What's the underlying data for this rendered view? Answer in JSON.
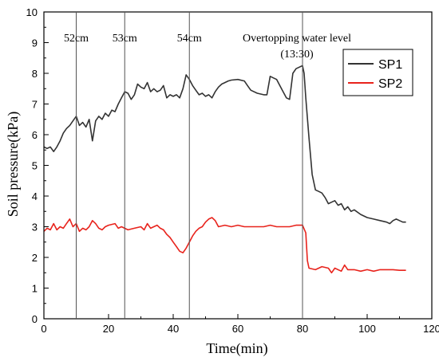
{
  "chart_data": {
    "type": "line",
    "title": "",
    "xlabel": "Time(min)",
    "ylabel": "Soil pressure(kPa)",
    "xlim": [
      0,
      120
    ],
    "ylim": [
      0,
      10
    ],
    "xticks": [
      0,
      20,
      40,
      60,
      80,
      100,
      120
    ],
    "yticks": [
      0,
      1,
      2,
      3,
      4,
      5,
      6,
      7,
      8,
      9,
      10
    ],
    "grid": false,
    "legend": "top-right",
    "markers": [
      {
        "x": 10,
        "label": "52cm"
      },
      {
        "x": 25,
        "label": "53cm"
      },
      {
        "x": 45,
        "label": "54cm"
      },
      {
        "x": 80,
        "label": "Overtopping water level",
        "label2": "(13:30)"
      }
    ],
    "series": [
      {
        "name": "SP1",
        "color": "#333333",
        "points": [
          [
            0,
            5.6
          ],
          [
            1,
            5.55
          ],
          [
            2,
            5.6
          ],
          [
            3,
            5.45
          ],
          [
            4,
            5.6
          ],
          [
            5,
            5.8
          ],
          [
            6,
            6.05
          ],
          [
            7,
            6.2
          ],
          [
            8,
            6.3
          ],
          [
            9,
            6.45
          ],
          [
            10,
            6.6
          ],
          [
            11,
            6.3
          ],
          [
            12,
            6.4
          ],
          [
            13,
            6.25
          ],
          [
            14,
            6.5
          ],
          [
            15,
            5.8
          ],
          [
            16,
            6.45
          ],
          [
            17,
            6.6
          ],
          [
            18,
            6.5
          ],
          [
            19,
            6.7
          ],
          [
            20,
            6.6
          ],
          [
            21,
            6.8
          ],
          [
            22,
            6.75
          ],
          [
            23,
            7.0
          ],
          [
            24,
            7.2
          ],
          [
            25,
            7.4
          ],
          [
            26,
            7.35
          ],
          [
            27,
            7.15
          ],
          [
            28,
            7.3
          ],
          [
            29,
            7.65
          ],
          [
            30,
            7.55
          ],
          [
            31,
            7.5
          ],
          [
            32,
            7.7
          ],
          [
            33,
            7.4
          ],
          [
            34,
            7.5
          ],
          [
            35,
            7.4
          ],
          [
            36,
            7.45
          ],
          [
            37,
            7.6
          ],
          [
            38,
            7.2
          ],
          [
            39,
            7.3
          ],
          [
            40,
            7.25
          ],
          [
            41,
            7.3
          ],
          [
            42,
            7.2
          ],
          [
            43,
            7.5
          ],
          [
            44,
            7.95
          ],
          [
            45,
            7.8
          ],
          [
            46,
            7.6
          ],
          [
            47,
            7.45
          ],
          [
            48,
            7.3
          ],
          [
            49,
            7.35
          ],
          [
            50,
            7.25
          ],
          [
            51,
            7.3
          ],
          [
            52,
            7.2
          ],
          [
            53,
            7.4
          ],
          [
            54,
            7.55
          ],
          [
            55,
            7.65
          ],
          [
            56,
            7.7
          ],
          [
            57,
            7.75
          ],
          [
            58,
            7.78
          ],
          [
            60,
            7.8
          ],
          [
            62,
            7.75
          ],
          [
            63,
            7.6
          ],
          [
            64,
            7.45
          ],
          [
            66,
            7.35
          ],
          [
            68,
            7.3
          ],
          [
            69,
            7.3
          ],
          [
            70,
            7.9
          ],
          [
            71,
            7.85
          ],
          [
            72,
            7.8
          ],
          [
            73,
            7.6
          ],
          [
            74,
            7.4
          ],
          [
            75,
            7.2
          ],
          [
            76,
            7.15
          ],
          [
            77,
            8.0
          ],
          [
            78,
            8.15
          ],
          [
            79,
            8.2
          ],
          [
            80,
            8.25
          ],
          [
            80.5,
            8.0
          ],
          [
            81,
            7.2
          ],
          [
            82,
            5.9
          ],
          [
            83,
            4.7
          ],
          [
            84,
            4.2
          ],
          [
            85,
            4.15
          ],
          [
            86,
            4.1
          ],
          [
            87,
            3.95
          ],
          [
            88,
            3.75
          ],
          [
            89,
            3.8
          ],
          [
            90,
            3.85
          ],
          [
            91,
            3.7
          ],
          [
            92,
            3.75
          ],
          [
            93,
            3.55
          ],
          [
            94,
            3.65
          ],
          [
            95,
            3.5
          ],
          [
            96,
            3.55
          ],
          [
            98,
            3.4
          ],
          [
            100,
            3.3
          ],
          [
            102,
            3.25
          ],
          [
            104,
            3.2
          ],
          [
            106,
            3.15
          ],
          [
            107,
            3.1
          ],
          [
            108,
            3.2
          ],
          [
            109,
            3.25
          ],
          [
            110,
            3.2
          ],
          [
            111,
            3.15
          ],
          [
            112,
            3.15
          ]
        ]
      },
      {
        "name": "SP2",
        "color": "#e8231c",
        "points": [
          [
            0,
            2.85
          ],
          [
            1,
            2.95
          ],
          [
            2,
            2.9
          ],
          [
            3,
            3.1
          ],
          [
            4,
            2.9
          ],
          [
            5,
            3.0
          ],
          [
            6,
            2.95
          ],
          [
            7,
            3.1
          ],
          [
            8,
            3.25
          ],
          [
            9,
            3.0
          ],
          [
            10,
            3.1
          ],
          [
            11,
            2.85
          ],
          [
            12,
            2.95
          ],
          [
            13,
            2.9
          ],
          [
            14,
            3.0
          ],
          [
            15,
            3.2
          ],
          [
            16,
            3.1
          ],
          [
            17,
            2.95
          ],
          [
            18,
            2.9
          ],
          [
            19,
            3.0
          ],
          [
            20,
            3.05
          ],
          [
            22,
            3.1
          ],
          [
            23,
            2.95
          ],
          [
            24,
            3.0
          ],
          [
            26,
            2.9
          ],
          [
            28,
            2.95
          ],
          [
            30,
            3.0
          ],
          [
            31,
            2.9
          ],
          [
            32,
            3.1
          ],
          [
            33,
            2.95
          ],
          [
            34,
            3.0
          ],
          [
            35,
            3.05
          ],
          [
            36,
            2.95
          ],
          [
            37,
            2.9
          ],
          [
            38,
            2.75
          ],
          [
            39,
            2.65
          ],
          [
            40,
            2.5
          ],
          [
            41,
            2.35
          ],
          [
            42,
            2.2
          ],
          [
            43,
            2.15
          ],
          [
            44,
            2.3
          ],
          [
            45,
            2.5
          ],
          [
            46,
            2.7
          ],
          [
            47,
            2.85
          ],
          [
            48,
            2.95
          ],
          [
            49,
            3.0
          ],
          [
            50,
            3.15
          ],
          [
            51,
            3.25
          ],
          [
            52,
            3.3
          ],
          [
            53,
            3.2
          ],
          [
            54,
            3.0
          ],
          [
            56,
            3.05
          ],
          [
            58,
            3.0
          ],
          [
            60,
            3.05
          ],
          [
            62,
            3.0
          ],
          [
            64,
            3.0
          ],
          [
            66,
            3.0
          ],
          [
            68,
            3.0
          ],
          [
            70,
            3.05
          ],
          [
            72,
            3.0
          ],
          [
            74,
            3.0
          ],
          [
            76,
            3.0
          ],
          [
            78,
            3.05
          ],
          [
            80,
            3.05
          ],
          [
            81,
            2.8
          ],
          [
            81.5,
            1.9
          ],
          [
            82,
            1.65
          ],
          [
            84,
            1.6
          ],
          [
            86,
            1.7
          ],
          [
            88,
            1.65
          ],
          [
            89,
            1.5
          ],
          [
            90,
            1.65
          ],
          [
            92,
            1.55
          ],
          [
            93,
            1.75
          ],
          [
            94,
            1.6
          ],
          [
            96,
            1.6
          ],
          [
            98,
            1.55
          ],
          [
            100,
            1.6
          ],
          [
            102,
            1.55
          ],
          [
            104,
            1.6
          ],
          [
            106,
            1.6
          ],
          [
            108,
            1.6
          ],
          [
            110,
            1.58
          ],
          [
            112,
            1.58
          ]
        ]
      }
    ]
  }
}
